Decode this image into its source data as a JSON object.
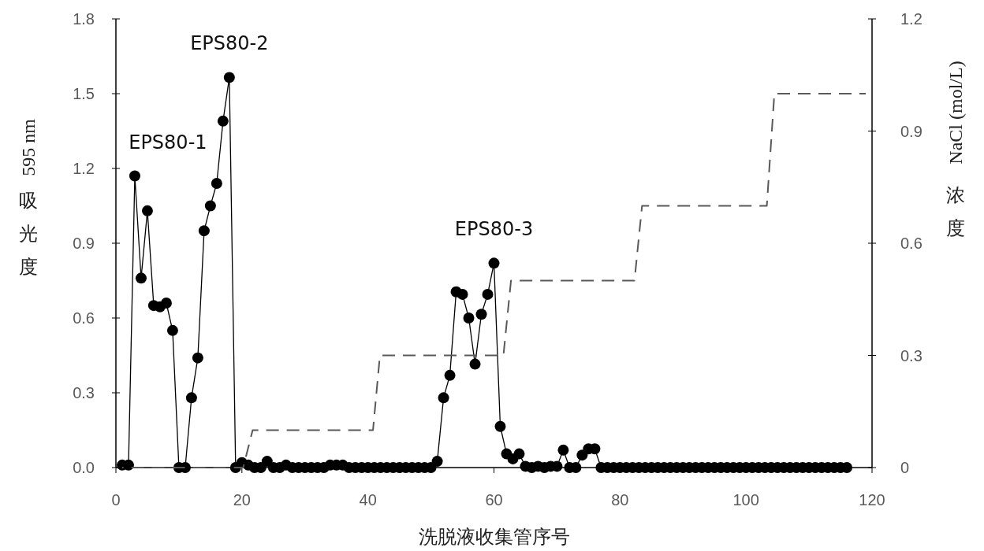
{
  "chart_data": {
    "type": "line",
    "xlabel": "洗脱液收集管序号",
    "ylabel": "595 nm 吸光度",
    "y2label": "NaCl (mol/L) 浓度",
    "xlim": [
      0,
      120
    ],
    "xticks": [
      0,
      20,
      40,
      60,
      80,
      100,
      120
    ],
    "ylim": [
      0,
      1.8
    ],
    "yticks": [
      {
        "value": 0,
        "label": "0.0"
      },
      {
        "value": 0.3,
        "label": "0.3"
      },
      {
        "value": 0.6,
        "label": "0.6"
      },
      {
        "value": 0.9,
        "label": "0.9"
      },
      {
        "value": 1.2,
        "label": "1.2"
      },
      {
        "value": 1.5,
        "label": "1.5"
      },
      {
        "value": 1.8,
        "label": "1.8"
      }
    ],
    "y2lim": [
      0,
      1.2
    ],
    "y2ticks": [
      0,
      0.3,
      0.6,
      0.9,
      1.2
    ],
    "grid": false,
    "series": [
      {
        "color": "#000000",
        "marker": "circle",
        "line_style": "solid",
        "x": [
          1,
          2,
          3,
          4,
          5,
          6,
          7,
          8,
          9,
          10,
          11,
          12,
          13,
          14,
          15,
          16,
          17,
          18,
          19,
          20,
          21,
          22,
          23,
          24,
          25,
          26,
          27,
          28,
          29,
          30,
          31,
          32,
          33,
          34,
          35,
          36,
          37,
          38,
          39,
          40,
          41,
          42,
          43,
          44,
          45,
          46,
          47,
          48,
          49,
          50,
          51,
          52,
          53,
          54,
          55,
          56,
          57,
          58,
          59,
          60,
          61,
          62,
          63,
          64,
          65,
          66,
          67,
          68,
          69,
          70,
          71,
          72,
          73,
          74,
          75,
          76,
          77,
          78,
          79,
          80,
          81,
          82,
          83,
          84,
          85,
          86,
          87,
          88,
          89,
          90,
          91,
          92,
          93,
          94,
          95,
          96,
          97,
          98,
          99,
          100,
          101,
          102,
          103,
          104,
          105,
          106,
          107,
          108,
          109,
          110,
          111,
          112,
          113,
          114,
          115,
          116
        ],
        "values": [
          0.01,
          0.01,
          1.17,
          0.76,
          1.03,
          0.65,
          0.645,
          0.66,
          0.55,
          0,
          0,
          0.28,
          0.44,
          0.95,
          1.05,
          1.14,
          1.39,
          1.565,
          0,
          0.02,
          0.01,
          0,
          0,
          0.025,
          0,
          0,
          0.01,
          0,
          0,
          0,
          0,
          0,
          0,
          0.01,
          0.01,
          0.01,
          0,
          0,
          0,
          0,
          0,
          0,
          0,
          0,
          0,
          0,
          0,
          0,
          0,
          0,
          0.025,
          0.28,
          0.37,
          0.705,
          0.695,
          0.6,
          0.415,
          0.615,
          0.695,
          0.82,
          0.165,
          0.055,
          0.035,
          0.055,
          0.005,
          0,
          0.005,
          0,
          0.005,
          0.005,
          0.07,
          0,
          0,
          0.05,
          0.075,
          0.075,
          0,
          0,
          0,
          0,
          0,
          0,
          0,
          0,
          0,
          0,
          0,
          0,
          0,
          0,
          0,
          0,
          0,
          0,
          0,
          0,
          0,
          0,
          0,
          0,
          0,
          0,
          0,
          0,
          0,
          0,
          0,
          0,
          0,
          0,
          0,
          0,
          0,
          0,
          0,
          0
        ]
      },
      {
        "color": "#595959",
        "marker": "none",
        "line_style": "dashed",
        "axis": "y2",
        "x": [
          1,
          20.2,
          21.7,
          40.8,
          41.9,
          61.5,
          62.7,
          82.3,
          83.5,
          103.3,
          104.5,
          119
        ],
        "values": [
          0,
          0,
          0.1,
          0.1,
          0.3,
          0.3,
          0.5,
          0.5,
          0.7,
          0.7,
          1.0,
          1.0
        ]
      }
    ],
    "annotations": [
      {
        "text": "EPS80-1",
        "x": 3,
        "y": 1.17
      },
      {
        "text": "EPS80-2",
        "x": 18,
        "y": 1.565
      },
      {
        "text": "EPS80-3",
        "x": 60,
        "y": 0.82
      }
    ]
  }
}
